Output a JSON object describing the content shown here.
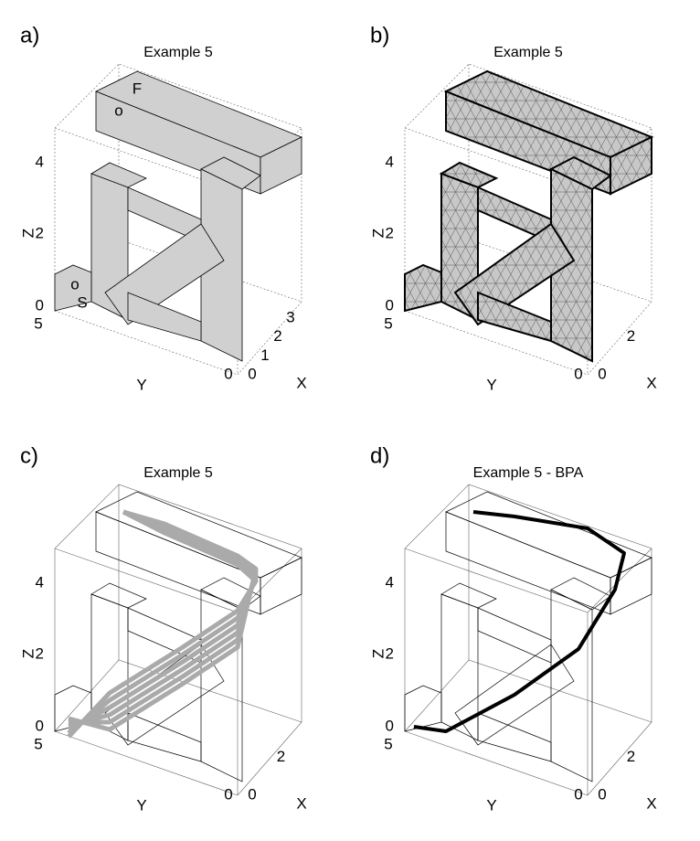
{
  "panels": [
    {
      "label": "a)",
      "title": "Example 5",
      "zlabel": "Z",
      "ylabel": "Y",
      "xlabel": "X",
      "zticks": [
        "0",
        "2",
        "4"
      ],
      "yticks": [
        "5",
        "0"
      ],
      "xticks": [
        "0",
        "1",
        "2",
        "3"
      ],
      "annotations": [
        "F",
        "o",
        "o",
        "S"
      ]
    },
    {
      "label": "b)",
      "title": "Example 5",
      "zlabel": "Z",
      "ylabel": "Y",
      "xlabel": "X",
      "zticks": [
        "0",
        "2",
        "4"
      ],
      "yticks": [
        "5",
        "0"
      ],
      "xticks": [
        "0",
        "2"
      ]
    },
    {
      "label": "c)",
      "title": "Example 5",
      "zlabel": "Z",
      "ylabel": "Y",
      "xlabel": "X",
      "zticks": [
        "0",
        "2",
        "4"
      ],
      "yticks": [
        "5",
        "0"
      ],
      "xticks": [
        "0",
        "2"
      ]
    },
    {
      "label": "d)",
      "title": "Example 5 - BPA",
      "zlabel": "Z",
      "ylabel": "Y",
      "xlabel": "X",
      "zticks": [
        "0",
        "2",
        "4"
      ],
      "yticks": [
        "5",
        "0"
      ],
      "xticks": [
        "0",
        "2"
      ]
    }
  ]
}
